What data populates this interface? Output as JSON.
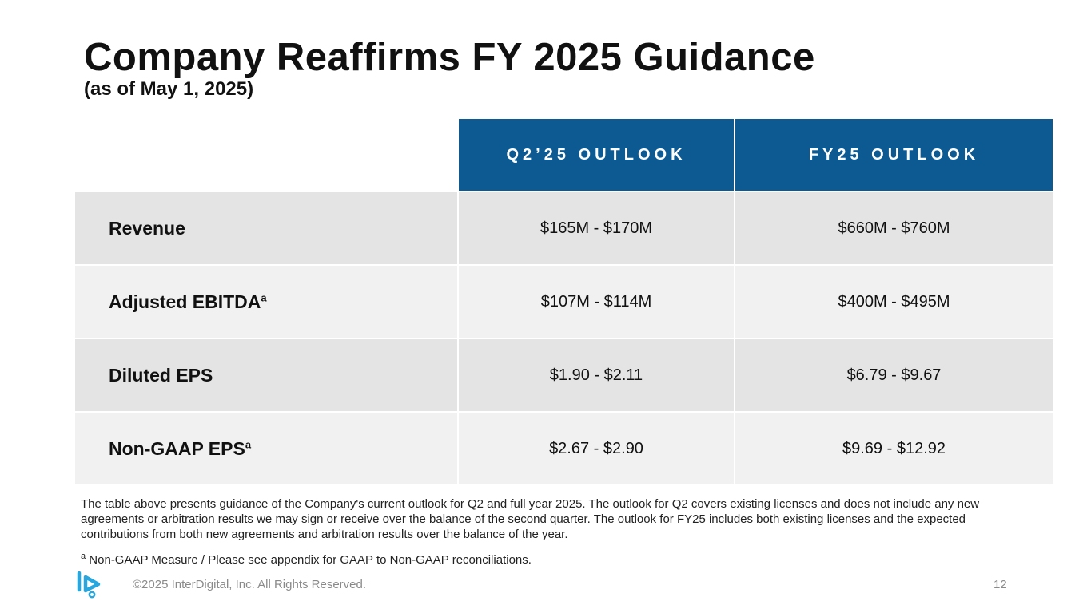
{
  "slide": {
    "title": "Company Reaffirms FY 2025 Guidance",
    "subtitle": "(as of May 1, 2025)"
  },
  "table": {
    "headers": [
      "Q2’25 OUTLOOK",
      "FY25 OUTLOOK"
    ],
    "rows": [
      {
        "metric": "Revenue",
        "sup": "",
        "q2": "$165M - $170M",
        "fy": "$660M - $760M"
      },
      {
        "metric": "Adjusted EBITDA",
        "sup": "a",
        "q2": "$107M - $114M",
        "fy": "$400M - $495M"
      },
      {
        "metric": "Diluted EPS",
        "sup": "",
        "q2": "$1.90 - $2.11",
        "fy": "$6.79 - $9.67"
      },
      {
        "metric": "Non-GAAP EPS",
        "sup": "a",
        "q2": "$2.67 - $2.90",
        "fy": "$9.69 - $12.92"
      }
    ]
  },
  "notes": {
    "description": "The table above presents guidance of the Company's current outlook for Q2 and full year 2025. The outlook for Q2 covers existing licenses and does not include any new agreements or arbitration results we may sign or receive over the balance of the second quarter. The outlook for FY25 includes both existing licenses and the expected contributions from both new agreements and arbitration results over the balance of the year.",
    "footnote_marker": "a",
    "footnote": "Non-GAAP Measure / Please see appendix for GAAP to Non-GAAP reconciliations."
  },
  "footer": {
    "copyright": "©2025 InterDigital, Inc. All Rights Reserved.",
    "page_number": "12",
    "logo_icon": "interdigital-logo-icon",
    "brand_color": "#0d5a92",
    "logo_color": "#2aa6df"
  }
}
